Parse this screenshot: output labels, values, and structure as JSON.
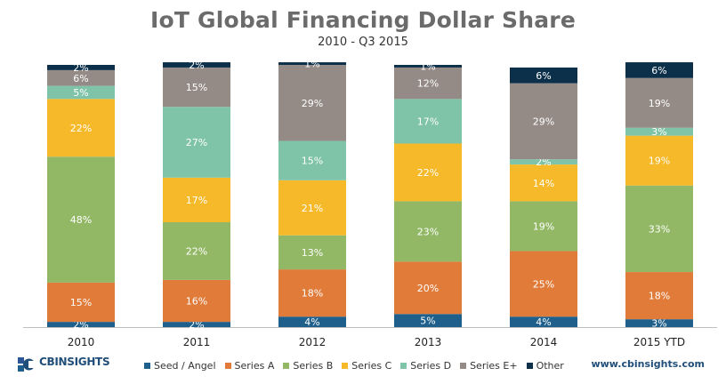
{
  "chart_data": {
    "type": "bar",
    "stacked": true,
    "title": "IoT Global Financing Dollar Share",
    "subtitle": "2010 - Q3 2015",
    "categories": [
      "2010",
      "2011",
      "2012",
      "2013",
      "2014",
      "2015 YTD"
    ],
    "ylim": [
      0,
      100
    ],
    "series": [
      {
        "name": "Seed / Angel",
        "color": "#1f5f8b",
        "values": [
          2,
          2,
          4,
          5,
          4,
          3
        ]
      },
      {
        "name": "Series A",
        "color": "#e07b39",
        "values": [
          15,
          16,
          18,
          20,
          25,
          18
        ]
      },
      {
        "name": "Series B",
        "color": "#92b866",
        "values": [
          48,
          22,
          13,
          23,
          19,
          33
        ]
      },
      {
        "name": "Series C",
        "color": "#f6b929",
        "values": [
          22,
          17,
          21,
          22,
          14,
          19
        ]
      },
      {
        "name": "Series D",
        "color": "#7fc3a8",
        "values": [
          5,
          27,
          15,
          17,
          2,
          3
        ]
      },
      {
        "name": "Series E+",
        "color": "#948b86",
        "values": [
          6,
          15,
          29,
          12,
          29,
          19
        ]
      },
      {
        "name": "Other",
        "color": "#0c2f4a",
        "values": [
          2,
          2,
          1,
          1,
          6,
          6
        ]
      }
    ],
    "legend_position": "bottom"
  },
  "footer": {
    "brand_text": "CBINSIGHTS",
    "website": "www.cbinsights.com"
  }
}
